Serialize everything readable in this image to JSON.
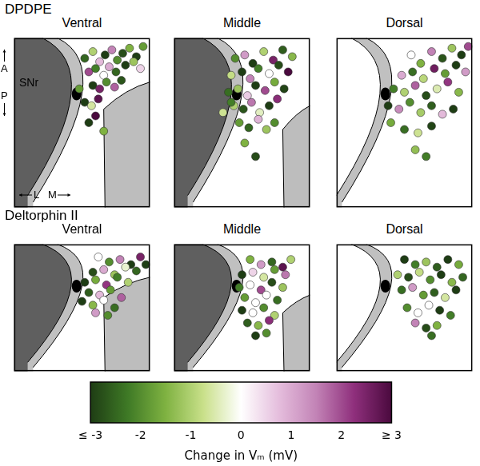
{
  "chart_data": [
    {
      "type": "scatter",
      "title": "DPDPE",
      "tick_labels": false,
      "xlim": [
        0,
        100
      ],
      "ylim": [
        0,
        100
      ],
      "panels": [
        {
          "subtitle": "Ventral",
          "x": [
            52,
            58,
            63,
            67,
            72,
            76,
            80,
            85,
            90,
            95,
            55,
            60,
            66,
            70,
            75,
            82,
            88,
            93,
            58,
            63,
            68,
            74,
            79,
            52,
            57,
            62,
            48,
            55,
            60,
            66
          ],
          "y": [
            88,
            92,
            86,
            90,
            93,
            87,
            91,
            94,
            89,
            95,
            80,
            82,
            78,
            83,
            80,
            84,
            86,
            82,
            72,
            70,
            74,
            71,
            75,
            62,
            60,
            64,
            70,
            50,
            54,
            45
          ],
          "change_in_vm": [
            -2.5,
            -1,
            0.8,
            -3,
            1.5,
            -2,
            -2.8,
            -1.5,
            -3,
            -1.8,
            2,
            -2.2,
            0,
            1,
            -2.5,
            -3,
            -1.2,
            0.5,
            -3,
            2.5,
            -2,
            1.8,
            -2.7,
            -3,
            -0.6,
            2.8,
            -1.8,
            -3,
            3,
            -1.5
          ]
        },
        {
          "subtitle": "Middle",
          "x": [
            45,
            52,
            58,
            66,
            73,
            80,
            87,
            42,
            50,
            56,
            62,
            70,
            77,
            84,
            40,
            47,
            54,
            60,
            67,
            74,
            81,
            44,
            51,
            57,
            63,
            70,
            76,
            48,
            55,
            62,
            68,
            74,
            36,
            42,
            52,
            60
          ],
          "y": [
            88,
            90,
            85,
            92,
            87,
            93,
            89,
            78,
            80,
            76,
            82,
            79,
            84,
            80,
            68,
            70,
            66,
            72,
            69,
            74,
            70,
            60,
            58,
            62,
            56,
            60,
            64,
            50,
            47,
            52,
            46,
            50,
            56,
            62,
            38,
            30
          ],
          "change_in_vm": [
            -2,
            1.2,
            -3,
            -1,
            2.5,
            -2.6,
            -1.4,
            -0.8,
            -3,
            1.5,
            -2.2,
            0,
            -2.8,
            3,
            -2.4,
            -1.2,
            0.6,
            -3,
            2,
            -1.6,
            -2.9,
            -1,
            -2.7,
            1.6,
            -0.4,
            -3,
            2.3,
            -1.8,
            -2.5,
            0.9,
            -1.2,
            -2,
            -0.7,
            -2.2,
            -1.5,
            -2.8
          ]
        },
        {
          "subtitle": "Dorsal",
          "x": [
            55,
            62,
            70,
            78,
            85,
            92,
            97,
            48,
            56,
            64,
            72,
            80,
            88,
            95,
            42,
            50,
            58,
            66,
            74,
            82,
            90,
            38,
            46,
            54,
            62,
            70,
            78,
            86,
            40,
            50,
            60,
            70,
            58,
            66
          ],
          "y": [
            90,
            85,
            92,
            88,
            94,
            90,
            95,
            78,
            80,
            76,
            82,
            79,
            84,
            80,
            70,
            68,
            72,
            66,
            70,
            74,
            68,
            60,
            58,
            62,
            56,
            60,
            55,
            58,
            50,
            46,
            44,
            48,
            34,
            30
          ],
          "change_in_vm": [
            0,
            -1.5,
            1.5,
            -2.7,
            -1.2,
            -3,
            2,
            1,
            -2.4,
            -0.9,
            2.6,
            -1.8,
            -3,
            1.2,
            -2.2,
            -1,
            1.8,
            -2.8,
            -0.5,
            2.2,
            -1.4,
            -3,
            1.4,
            -2,
            -1.1,
            -2.6,
            0.8,
            -3,
            -1.6,
            -2.4,
            -0.7,
            -2.9,
            -1.3,
            -2.2
          ]
        }
      ]
    },
    {
      "type": "scatter",
      "title": "Deltorphin II",
      "tick_labels": false,
      "xlim": [
        0,
        100
      ],
      "ylim": [
        0,
        100
      ],
      "panels": [
        {
          "subtitle": "Ventral",
          "x": [
            62,
            70,
            78,
            86,
            93,
            58,
            66,
            74,
            82,
            90,
            97,
            52,
            60,
            68,
            76,
            84,
            55,
            63,
            71,
            79,
            50,
            58,
            66,
            74,
            60,
            69
          ],
          "y": [
            90,
            86,
            88,
            84,
            90,
            78,
            80,
            76,
            82,
            79,
            84,
            70,
            72,
            68,
            74,
            70,
            62,
            60,
            64,
            58,
            55,
            52,
            56,
            50,
            46,
            44
          ],
          "change_in_vm": [
            0,
            -2,
            1.5,
            -3,
            2.5,
            -2.8,
            1,
            -1.2,
            -0.3,
            -2.5,
            -3,
            -3,
            -1.6,
            2.2,
            -2.2,
            -1,
            -2.6,
            0.8,
            -1.8,
            1.8,
            -3,
            -1.4,
            0,
            -2.4,
            1.2,
            -2
          ]
        },
        {
          "subtitle": "Middle",
          "x": [
            56,
            64,
            72,
            80,
            86,
            50,
            58,
            66,
            74,
            82,
            48,
            56,
            64,
            72,
            80,
            52,
            60,
            68,
            76,
            50,
            58,
            66,
            74,
            54,
            62,
            70,
            60,
            68
          ],
          "y": [
            88,
            84,
            86,
            82,
            88,
            76,
            78,
            74,
            80,
            76,
            66,
            68,
            64,
            70,
            66,
            58,
            54,
            60,
            56,
            48,
            46,
            50,
            44,
            38,
            36,
            40,
            28,
            30
          ],
          "change_in_vm": [
            -1.5,
            1.2,
            -2.5,
            2.8,
            -1,
            -3,
            0.5,
            -0.6,
            -1.8,
            1.6,
            -2.2,
            0,
            2,
            -2.8,
            -1.2,
            -1.8,
            0,
            0,
            -2.4,
            -3,
            0,
            -2,
            -1,
            -2.6,
            -1.4,
            2.3,
            -3,
            -2
          ]
        },
        {
          "subtitle": "Dorsal",
          "x": [
            50,
            58,
            66,
            74,
            82,
            90,
            45,
            53,
            61,
            69,
            77,
            85,
            93,
            48,
            56,
            64,
            72,
            80,
            88,
            52,
            60,
            68,
            76,
            84,
            58,
            66,
            74,
            70
          ],
          "y": [
            88,
            84,
            86,
            82,
            88,
            84,
            76,
            74,
            78,
            72,
            76,
            70,
            74,
            64,
            66,
            60,
            62,
            58,
            64,
            50,
            46,
            52,
            48,
            44,
            38,
            34,
            36,
            28
          ],
          "change_in_vm": [
            -3,
            -2.2,
            -1.2,
            -2.6,
            -3,
            -1.6,
            -1,
            -2.8,
            -0.8,
            -2,
            -3,
            -1.4,
            -2.5,
            -2.4,
            1.2,
            -1.8,
            -2.6,
            -0.6,
            -3,
            -2,
            0,
            0,
            -3,
            -2.2,
            1.5,
            -2.8,
            -1.5,
            -2.4
          ]
        }
      ]
    }
  ],
  "colorbar": {
    "label": "Change in Vₘ (mV)",
    "range": [
      -3,
      3
    ],
    "ticks": [
      {
        "value": -3,
        "label": "≤ -3"
      },
      -2,
      -1,
      0,
      1,
      2,
      {
        "value": 3,
        "label": "≥ 3"
      }
    ]
  },
  "labels": {
    "region": "SNr",
    "anterior": "A",
    "posterior": "P",
    "lateral": "L",
    "medial": "M"
  }
}
